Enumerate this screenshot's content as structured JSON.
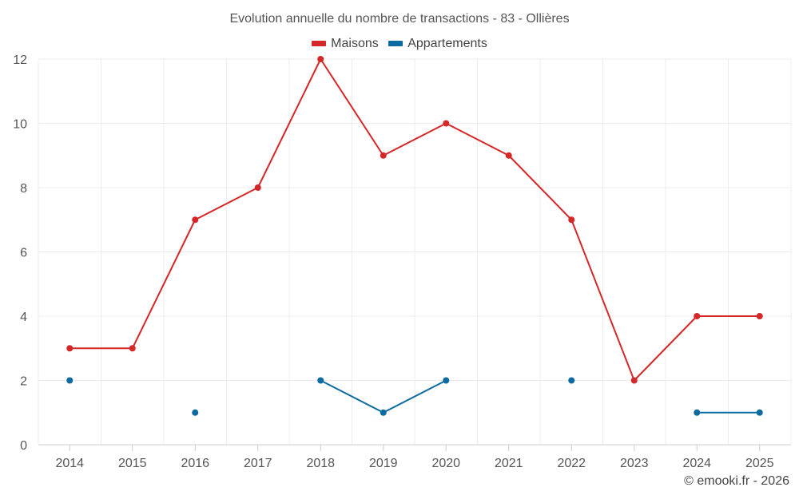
{
  "chart_data": {
    "type": "line",
    "title": "Evolution annuelle du nombre de transactions - 83 - Ollières",
    "xlabel": "",
    "ylabel": "",
    "x": [
      "2014",
      "2015",
      "2016",
      "2017",
      "2018",
      "2019",
      "2020",
      "2021",
      "2022",
      "2023",
      "2024",
      "2025"
    ],
    "ylim": [
      0,
      12
    ],
    "yticks": [
      0,
      2,
      4,
      6,
      8,
      10,
      12
    ],
    "grid": true,
    "legend_position": "top-center",
    "series": [
      {
        "name": "Maisons",
        "color": "#d62728",
        "values": [
          3,
          3,
          7,
          8,
          12,
          9,
          10,
          9,
          7,
          2,
          4,
          4
        ]
      },
      {
        "name": "Appartements",
        "color": "#0a6aa1",
        "values": [
          2,
          null,
          1,
          null,
          2,
          1,
          2,
          null,
          2,
          null,
          1,
          1
        ]
      }
    ]
  },
  "credit": "© emooki.fr - 2026"
}
